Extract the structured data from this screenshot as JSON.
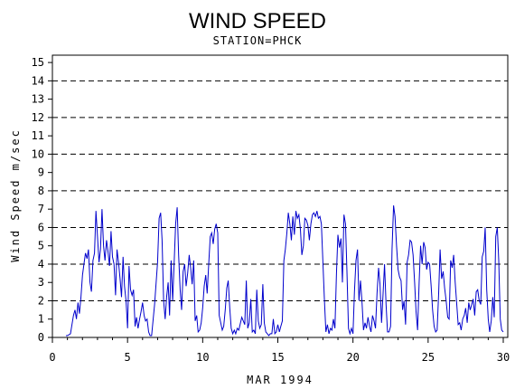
{
  "chart_data": {
    "type": "line",
    "title": "WIND SPEED",
    "subtitle": "STATION=PHCK",
    "xlabel": "MAR 1994",
    "ylabel": "Wind Speed m/sec",
    "xlim": [
      0,
      30.3
    ],
    "ylim": [
      0,
      15.4
    ],
    "x_ticks": [
      0,
      5,
      10,
      15,
      20,
      25,
      30
    ],
    "y_ticks": [
      0,
      1,
      2,
      3,
      4,
      5,
      6,
      7,
      8,
      9,
      10,
      11,
      12,
      13,
      14,
      15
    ],
    "reference_lines": [
      2,
      4,
      6,
      8,
      10,
      12,
      14
    ],
    "grid": "horizontal dashed reference lines",
    "series": [
      {
        "color": "#0000cc",
        "x": [
          0.9,
          1.0,
          1.2,
          1.4,
          1.5,
          1.6,
          1.7,
          1.8,
          1.9,
          2.0,
          2.1,
          2.2,
          2.3,
          2.4,
          2.5,
          2.6,
          2.7,
          2.8,
          2.9,
          3.0,
          3.1,
          3.2,
          3.3,
          3.4,
          3.5,
          3.6,
          3.7,
          3.8,
          3.9,
          4.0,
          4.1,
          4.2,
          4.3,
          4.4,
          4.5,
          4.6,
          4.7,
          4.8,
          4.9,
          5.0,
          5.1,
          5.2,
          5.3,
          5.4,
          5.5,
          5.6,
          5.7,
          5.8,
          5.9,
          6.0,
          6.1,
          6.2,
          6.3,
          6.4,
          6.5,
          6.6,
          6.8,
          7.0,
          7.1,
          7.2,
          7.3,
          7.4,
          7.5,
          7.6,
          7.7,
          7.8,
          7.9,
          8.0,
          8.1,
          8.2,
          8.3,
          8.4,
          8.5,
          8.6,
          8.7,
          8.8,
          8.9,
          9.0,
          9.1,
          9.2,
          9.3,
          9.4,
          9.5,
          9.6,
          9.7,
          9.8,
          9.9,
          10.0,
          10.1,
          10.2,
          10.3,
          10.4,
          10.5,
          10.6,
          10.7,
          10.8,
          10.9,
          11.0,
          11.1,
          11.2,
          11.3,
          11.4,
          11.5,
          11.6,
          11.7,
          11.8,
          11.9,
          12.0,
          12.1,
          12.2,
          12.3,
          12.4,
          12.6,
          12.8,
          12.9,
          13.0,
          13.1,
          13.2,
          13.3,
          13.4,
          13.5,
          13.6,
          13.7,
          13.8,
          13.9,
          14.0,
          14.1,
          14.2,
          14.3,
          14.4,
          14.5,
          14.6,
          14.7,
          14.8,
          14.9,
          15.0,
          15.1,
          15.2,
          15.3,
          15.4,
          15.5,
          15.6,
          15.7,
          15.8,
          15.9,
          16.0,
          16.1,
          16.2,
          16.3,
          16.4,
          16.5,
          16.6,
          16.7,
          16.8,
          16.9,
          17.0,
          17.1,
          17.2,
          17.3,
          17.4,
          17.5,
          17.6,
          17.7,
          17.8,
          17.9,
          18.0,
          18.1,
          18.2,
          18.3,
          18.4,
          18.5,
          18.6,
          18.7,
          18.8,
          18.9,
          19.0,
          19.1,
          19.2,
          19.3,
          19.4,
          19.5,
          19.6,
          19.7,
          19.8,
          19.9,
          20.0,
          20.1,
          20.2,
          20.3,
          20.4,
          20.5,
          20.6,
          20.7,
          20.8,
          20.9,
          21.0,
          21.1,
          21.2,
          21.3,
          21.4,
          21.5,
          21.6,
          21.7,
          21.8,
          21.9,
          22.0,
          22.1,
          22.2,
          22.3,
          22.4,
          22.5,
          22.6,
          22.7,
          22.8,
          22.9,
          23.0,
          23.1,
          23.2,
          23.3,
          23.4,
          23.5,
          23.6,
          23.7,
          23.8,
          23.9,
          24.0,
          24.1,
          24.2,
          24.3,
          24.4,
          24.5,
          24.6,
          24.7,
          24.8,
          24.9,
          25.0,
          25.1,
          25.2,
          25.3,
          25.4,
          25.5,
          25.6,
          25.7,
          25.8,
          25.9,
          26.0,
          26.1,
          26.2,
          26.3,
          26.4,
          26.5,
          26.6,
          26.7,
          26.8,
          26.9,
          27.0,
          27.1,
          27.2,
          27.3,
          27.4,
          27.5,
          27.6,
          27.7,
          27.8,
          27.9,
          28.0,
          28.1,
          28.2,
          28.3,
          28.4,
          28.5,
          28.6,
          28.7,
          28.8,
          28.9,
          29.0,
          29.1,
          29.2,
          29.3,
          29.4,
          29.5,
          29.6,
          29.7,
          29.8,
          29.9,
          30.0
        ],
        "values": [
          0.1,
          0.1,
          0.2,
          1.2,
          1.5,
          1.0,
          1.9,
          1.3,
          2.2,
          3.4,
          4.0,
          4.6,
          4.3,
          4.8,
          3.0,
          2.5,
          4.2,
          4.6,
          6.9,
          5.5,
          4.1,
          4.8,
          7.0,
          5.0,
          4.2,
          5.3,
          4.7,
          3.9,
          5.8,
          4.4,
          4.0,
          2.3,
          4.8,
          4.1,
          3.2,
          2.2,
          4.4,
          2.8,
          2.0,
          0.5,
          3.9,
          2.6,
          2.3,
          2.6,
          0.6,
          1.1,
          0.5,
          1.0,
          1.4,
          1.9,
          1.2,
          0.9,
          1.0,
          0.3,
          0.1,
          0.1,
          1.8,
          4.1,
          6.5,
          6.8,
          5.3,
          2.0,
          1.0,
          2.2,
          3.0,
          1.2,
          4.2,
          2.0,
          4.0,
          6.2,
          7.1,
          4.5,
          2.6,
          1.5,
          3.6,
          4.0,
          2.8,
          3.5,
          4.5,
          3.8,
          2.9,
          4.2,
          0.9,
          1.2,
          0.3,
          0.4,
          0.8,
          1.6,
          2.8,
          3.4,
          2.4,
          4.0,
          5.5,
          5.7,
          5.1,
          5.9,
          6.2,
          5.7,
          1.2,
          0.8,
          0.4,
          0.6,
          1.5,
          2.7,
          3.1,
          1.6,
          0.5,
          0.2,
          0.4,
          0.2,
          0.5,
          0.4,
          1.1,
          0.7,
          3.1,
          0.5,
          0.8,
          2.1,
          0.3,
          0.4,
          0.2,
          2.6,
          0.9,
          0.5,
          0.7,
          2.9,
          0.8,
          0.3,
          0.2,
          0.1,
          0.2,
          0.2,
          1.0,
          0.2,
          0.3,
          0.7,
          0.3,
          0.6,
          0.9,
          4.2,
          4.8,
          5.7,
          6.8,
          6.2,
          5.3,
          6.6,
          5.6,
          6.9,
          6.5,
          6.7,
          5.9,
          4.5,
          5.0,
          6.5,
          6.4,
          6.1,
          5.3,
          6.2,
          6.7,
          6.8,
          6.6,
          6.9,
          6.5,
          6.6,
          6.2,
          4.1,
          2.0,
          0.3,
          0.7,
          0.2,
          0.5,
          0.4,
          1.0,
          0.5,
          3.5,
          5.6,
          4.9,
          5.4,
          3.0,
          6.7,
          6.2,
          3.6,
          0.5,
          0.2,
          0.5,
          0.2,
          2.5,
          4.2,
          4.8,
          2.0,
          3.1,
          1.9,
          0.4,
          0.8,
          0.5,
          1.1,
          0.6,
          0.3,
          1.2,
          0.9,
          0.5,
          2.4,
          3.8,
          2.9,
          0.8,
          2.3,
          4.0,
          1.8,
          0.3,
          0.3,
          0.6,
          4.8,
          7.2,
          6.6,
          5.0,
          3.7,
          3.3,
          3.1,
          1.5,
          2.0,
          0.7,
          4.1,
          4.5,
          5.3,
          5.2,
          4.5,
          3.0,
          1.4,
          0.4,
          3.0,
          5.0,
          4.0,
          5.2,
          4.9,
          3.7,
          4.1,
          4.0,
          2.8,
          1.5,
          0.6,
          0.3,
          0.4,
          2.4,
          4.8,
          3.2,
          3.6,
          2.7,
          2.0,
          1.1,
          1.0,
          4.2,
          3.8,
          4.5,
          3.0,
          1.9,
          0.7,
          0.8,
          0.4,
          1.0,
          1.2,
          1.6,
          0.8,
          1.9,
          1.5,
          1.8,
          2.1,
          1.2,
          2.5,
          2.6,
          2.0,
          1.8,
          4.4,
          4.7,
          6.0,
          2.6,
          1.0,
          0.3,
          0.9,
          2.2,
          1.1,
          5.5,
          6.0,
          4.2,
          1.0,
          0.4,
          0.3
        ]
      }
    ]
  }
}
